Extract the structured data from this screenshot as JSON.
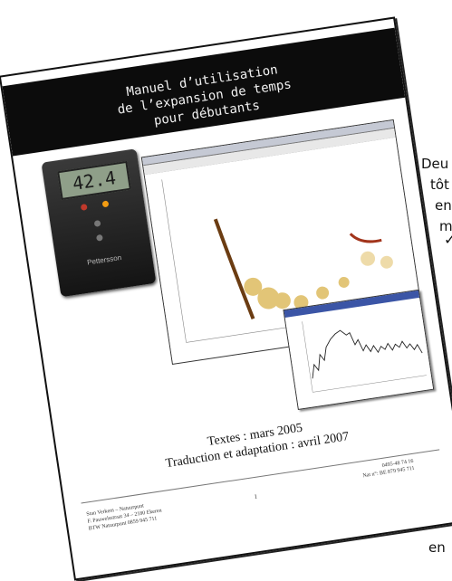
{
  "document": {
    "title_lines": [
      "Manuel d’utilisation",
      "de l’expansion de temps",
      "pour débutants"
    ],
    "meter": {
      "display": "42.4",
      "brand": "Pettersson"
    },
    "subtitle1": "Textes : mars 2005",
    "subtitle2": "Traduction et adaptation : avril 2007",
    "footer_left": [
      "Stan Verkem – Natuurpunt",
      "F. Pauwelsstraat 34 – 2180 Ekeren",
      "BTW Natuurpunt 0859 945 711"
    ],
    "page_number": "1",
    "footer_right": [
      "0495-48 74 16",
      "Nat n°: BE 879 945 711"
    ]
  },
  "side_text": {
    "lines": [
      "Deu",
      "tôt",
      "en",
      "m"
    ],
    "check": "✓",
    "bottom": "en"
  },
  "colors": {
    "band": "#0c0c0c",
    "spectro": "#b8860b",
    "accent": "#3b55a6"
  }
}
